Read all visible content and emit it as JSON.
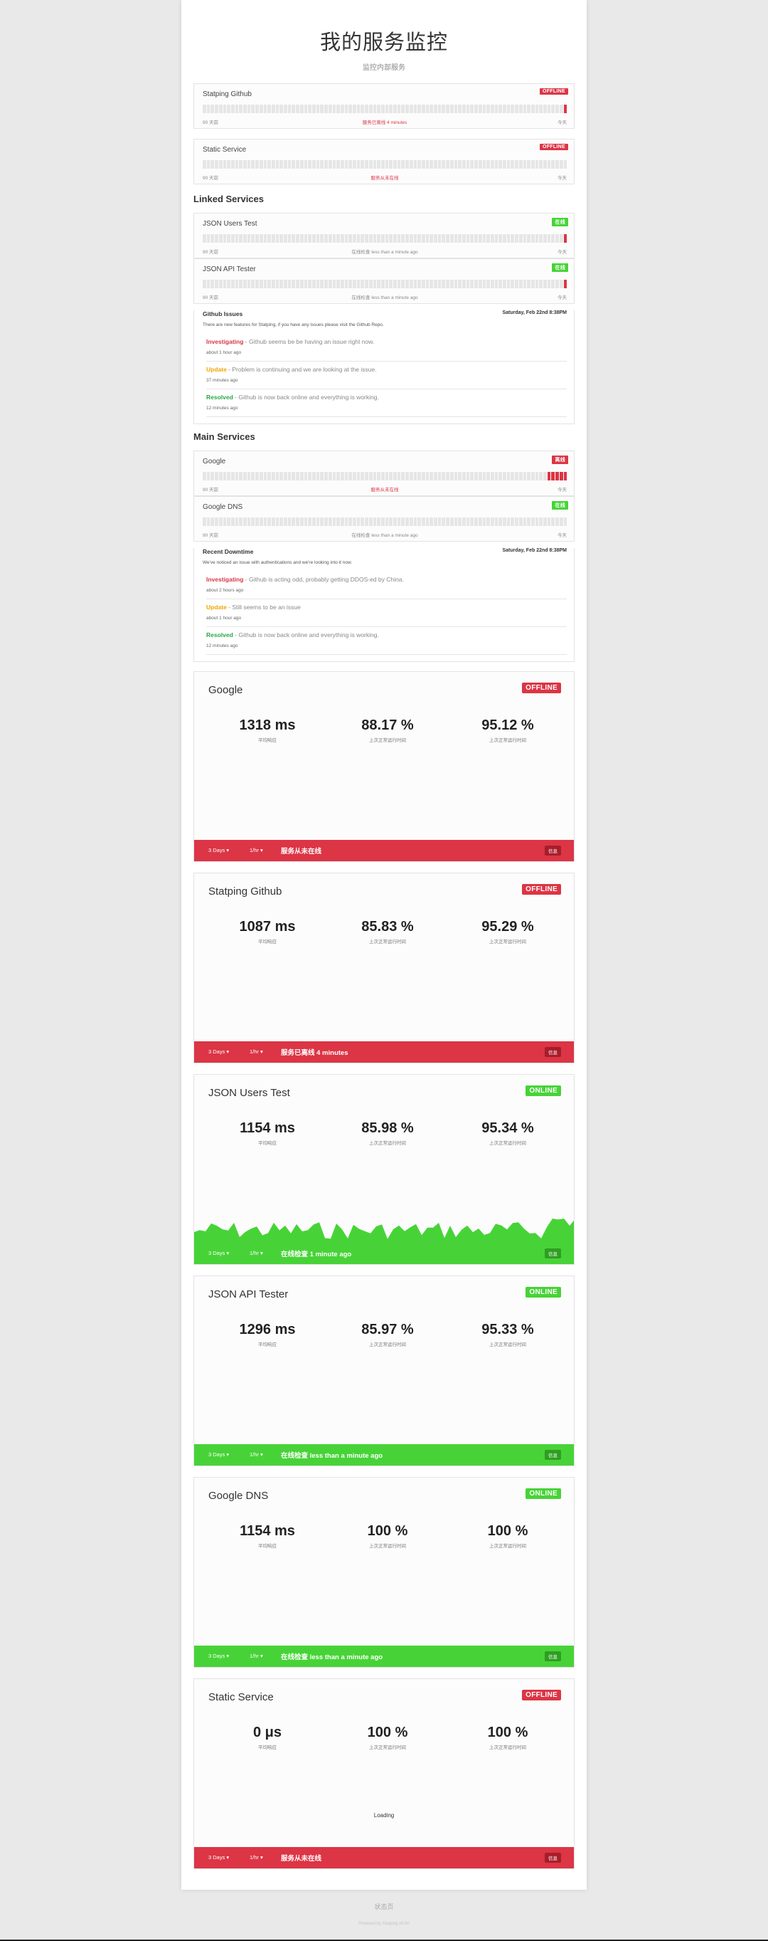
{
  "header": {
    "title": "我的服务监控",
    "subtitle": "监控内部服务"
  },
  "bar_labels": {
    "left": "90 天前",
    "right": "今天"
  },
  "top_services": [
    {
      "name": "Statping Github",
      "status": "OFFLINE",
      "state": "off",
      "middle": "服务已离线 4 minutes",
      "middle_red": true,
      "red_bars": 1
    },
    {
      "name": "Static Service",
      "status": "OFFLINE",
      "state": "off",
      "middle": "服务从未在线",
      "middle_red": true,
      "red_bars": 0
    }
  ],
  "groups": [
    {
      "title": "Linked Services",
      "services": [
        {
          "name": "JSON Users Test",
          "status": "在线",
          "state": "on",
          "middle": "在线检查 less than a minute ago",
          "middle_red": false,
          "red_bars": 1
        },
        {
          "name": "JSON API Tester",
          "status": "在线",
          "state": "on",
          "middle": "在线检查 less than a minute ago",
          "middle_red": false,
          "red_bars": 1
        }
      ],
      "incident": {
        "title": "Github Issues",
        "date": "Saturday, Feb 22nd 8:38PM",
        "description": "There are new features for Statping, if you have any issues please visit the Github Repo.",
        "updates": [
          {
            "type": "Investigating",
            "kind": "inv",
            "text": " - Github seems be be having an issue right now.",
            "time": "about 1 hour ago"
          },
          {
            "type": "Update",
            "kind": "up",
            "text": " - Problem is continuing and we are looking at the issue.",
            "time": "37 minutes ago"
          },
          {
            "type": "Resolved",
            "kind": "res",
            "text": " - Github is now back online and everything is working.",
            "time": "12 minutes ago"
          }
        ]
      }
    },
    {
      "title": "Main Services",
      "services": [
        {
          "name": "Google",
          "status": "离线",
          "state": "off",
          "middle": "服务从未在线",
          "middle_red": true,
          "red_bars": 5
        },
        {
          "name": "Google DNS",
          "status": "在线",
          "state": "on",
          "middle": "在线检查 less than a minute ago",
          "middle_red": false,
          "red_bars": 0
        }
      ],
      "incident": {
        "title": "Recent Downtime",
        "date": "Saturday, Feb 22nd 8:38PM",
        "description": "We've noticed an issue with authentications and we're looking into it now.",
        "updates": [
          {
            "type": "Investigating",
            "kind": "inv",
            "text": " - Github is acting odd, probably getting DDOS-ed by China.",
            "time": "about 2 hours ago"
          },
          {
            "type": "Update",
            "kind": "up",
            "text": " - Still seems to be an issue",
            "time": "about 1 hour ago"
          },
          {
            "type": "Resolved",
            "kind": "res",
            "text": " - Github is now back online and everything is working.",
            "time": "12 minutes ago"
          }
        ]
      }
    }
  ],
  "stat_labels": {
    "latency": "平均响应",
    "uptime_24h": "上次正常运行时间",
    "uptime_7d": "上次正常运行时间"
  },
  "footer_controls": {
    "range": "3 Days ▾",
    "zoom": "1/hr ▾",
    "button": "信息"
  },
  "cards": [
    {
      "name": "Google",
      "status": "OFFLINE",
      "state": "off",
      "latency": "1318 ms",
      "uptime_24h": "88.17 %",
      "uptime_7d": "95.12 %",
      "footer_text": "服务从未在线",
      "chart": false,
      "loading": ""
    },
    {
      "name": "Statping Github",
      "status": "OFFLINE",
      "state": "off",
      "latency": "1087 ms",
      "uptime_24h": "85.83 %",
      "uptime_7d": "95.29 %",
      "footer_text": "服务已离线 4 minutes",
      "chart": false,
      "loading": ""
    },
    {
      "name": "JSON Users Test",
      "status": "ONLINE",
      "state": "on",
      "latency": "1154 ms",
      "uptime_24h": "85.98 %",
      "uptime_7d": "95.34 %",
      "footer_text": "在线检查 1 minute ago",
      "chart": true,
      "loading": ""
    },
    {
      "name": "JSON API Tester",
      "status": "ONLINE",
      "state": "on",
      "latency": "1296 ms",
      "uptime_24h": "85.97 %",
      "uptime_7d": "95.33 %",
      "footer_text": "在线检查 less than a minute ago",
      "chart": false,
      "loading": ""
    },
    {
      "name": "Google DNS",
      "status": "ONLINE",
      "state": "on",
      "latency": "1154 ms",
      "uptime_24h": "100 %",
      "uptime_7d": "100 %",
      "footer_text": "在线检查 less than a minute ago",
      "chart": false,
      "loading": ""
    },
    {
      "name": "Static Service",
      "status": "OFFLINE",
      "state": "off",
      "latency": "0 μs",
      "uptime_24h": "100 %",
      "uptime_7d": "100 %",
      "footer_text": "服务从未在线",
      "chart": false,
      "loading": "Loading"
    }
  ],
  "page_footer": {
    "link": "状态页",
    "credit": "Powered by Statping v0.90"
  },
  "colors": {
    "offline": "#dc3545",
    "online": "#47d337",
    "update": "#f0a500",
    "resolved": "#28a745"
  }
}
